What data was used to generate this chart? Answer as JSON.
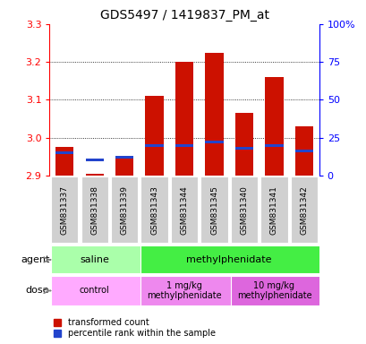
{
  "title": "GDS5497 / 1419837_PM_at",
  "samples": [
    "GSM831337",
    "GSM831338",
    "GSM831339",
    "GSM831343",
    "GSM831344",
    "GSM831345",
    "GSM831340",
    "GSM831341",
    "GSM831342"
  ],
  "transformed_count": [
    2.975,
    2.905,
    2.945,
    3.11,
    3.2,
    3.225,
    3.065,
    3.16,
    3.03
  ],
  "percentile_rank": [
    15,
    10,
    12,
    20,
    20,
    22,
    18,
    20,
    16
  ],
  "ymin": 2.9,
  "ymax": 3.3,
  "y2min": 0,
  "y2max": 100,
  "yticks": [
    2.9,
    3.0,
    3.1,
    3.2,
    3.3
  ],
  "y2ticks": [
    0,
    25,
    50,
    75,
    100
  ],
  "bar_color": "#cc1100",
  "blue_color": "#2244cc",
  "title_fontsize": 10,
  "agent_groups": [
    {
      "label": "saline",
      "start": 0,
      "end": 3,
      "color": "#aaffaa"
    },
    {
      "label": "methylphenidate",
      "start": 3,
      "end": 9,
      "color": "#44ee44"
    }
  ],
  "dose_groups": [
    {
      "label": "control",
      "start": 0,
      "end": 3,
      "color": "#ffaaff"
    },
    {
      "label": "1 mg/kg\nmethylphenidate",
      "start": 3,
      "end": 6,
      "color": "#ee88ee"
    },
    {
      "label": "10 mg/kg\nmethylphenidate",
      "start": 6,
      "end": 9,
      "color": "#dd66dd"
    }
  ],
  "legend_items": [
    {
      "label": "transformed count",
      "color": "#cc1100"
    },
    {
      "label": "percentile rank within the sample",
      "color": "#2244cc"
    }
  ],
  "sample_bg": "#d0d0d0"
}
